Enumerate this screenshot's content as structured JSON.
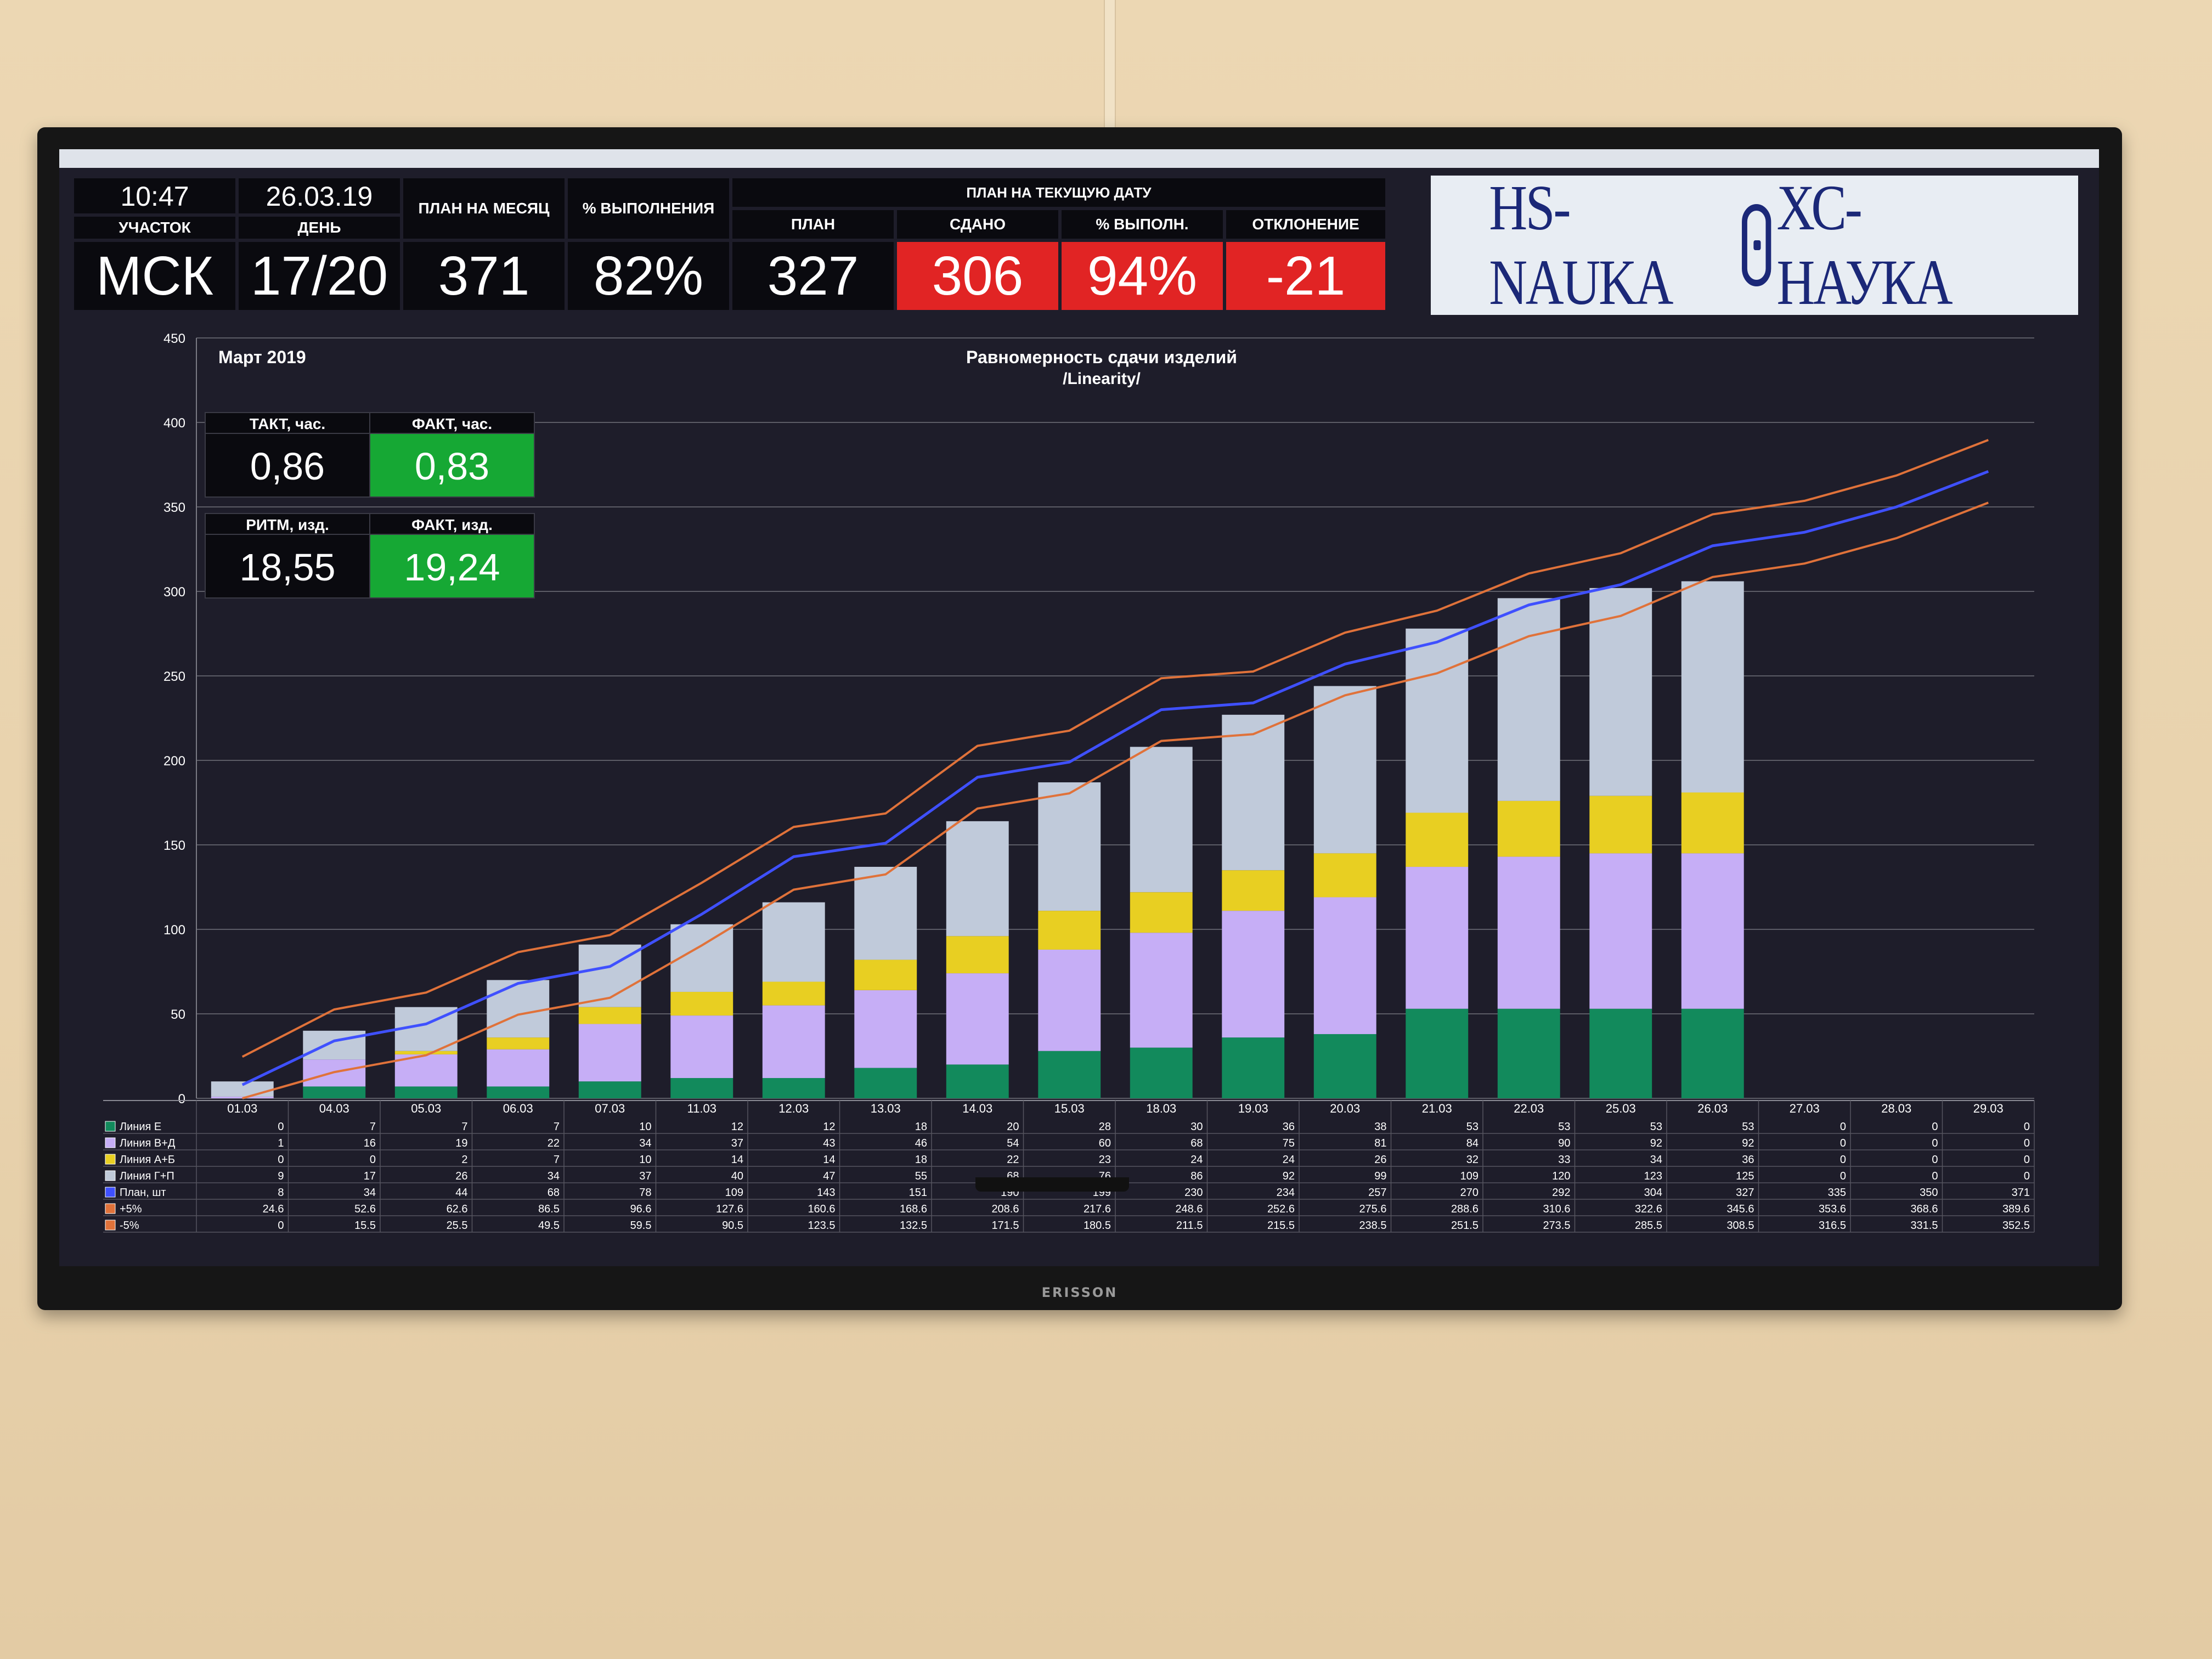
{
  "device": {
    "brand": "ERISSON"
  },
  "header": {
    "time": "10:47",
    "date": "26.03.19",
    "section_label": "УЧАСТОК",
    "section_value": "МСК",
    "day_label": "ДЕНЬ",
    "day_value": "17/20",
    "month_plan_label": "ПЛАН НА МЕСЯЦ",
    "month_plan_value": "371",
    "completion_label": "% ВЫПОЛНЕНИЯ",
    "completion_value": "82%",
    "current_plan_group_label": "ПЛАН НА ТЕКУЩУЮ ДАТУ",
    "plan_label": "ПЛАН",
    "plan_value": "327",
    "delivered_label": "СДАНО",
    "delivered_value": "306",
    "pct_label": "% ВЫПОЛН.",
    "pct_value": "94%",
    "deviation_label": "ОТКЛОНЕНИЕ",
    "deviation_value": "-21",
    "colors": {
      "bad": "#e12424",
      "good": "#16a834"
    }
  },
  "logo": {
    "latin": "HS-NAUKA",
    "cyrillic": "ХС-НАУКА"
  },
  "kpi": {
    "takt_label": "ТАКТ, час.",
    "takt_value": "0,86",
    "takt_fact_label": "ФАКТ, час.",
    "takt_fact_value": "0,83",
    "rhythm_label": "РИТМ, изд.",
    "rhythm_value": "18,55",
    "rhythm_fact_label": "ФАКТ, изд.",
    "rhythm_fact_value": "19,24"
  },
  "chart_data": {
    "type": "bar",
    "stacked": true,
    "month_label": "Март 2019",
    "title": "Равномерность сдачи изделий",
    "subtitle": "/Linearity/",
    "ylim": [
      0,
      450
    ],
    "yticks": [
      0,
      50,
      100,
      150,
      200,
      250,
      300,
      350,
      400,
      450
    ],
    "grid": true,
    "categories": [
      "01.03",
      "04.03",
      "05.03",
      "06.03",
      "07.03",
      "11.03",
      "12.03",
      "13.03",
      "14.03",
      "15.03",
      "18.03",
      "19.03",
      "20.03",
      "21.03",
      "22.03",
      "25.03",
      "26.03",
      "27.03",
      "28.03",
      "29.03"
    ],
    "series": [
      {
        "name": "Линия Е",
        "kind": "bar",
        "color": "#128a5c",
        "values": [
          0,
          7,
          7,
          7,
          10,
          12,
          12,
          18,
          20,
          28,
          30,
          36,
          38,
          53,
          53,
          53,
          53,
          0,
          0,
          0
        ]
      },
      {
        "name": "Линия В+Д",
        "kind": "bar",
        "color": "#c6aef6",
        "values": [
          1,
          16,
          19,
          22,
          34,
          37,
          43,
          46,
          54,
          60,
          68,
          75,
          81,
          84,
          90,
          92,
          92,
          0,
          0,
          0
        ]
      },
      {
        "name": "Линия А+Б",
        "kind": "bar",
        "color": "#e8cf22",
        "values": [
          0,
          0,
          2,
          7,
          10,
          14,
          14,
          18,
          22,
          23,
          24,
          24,
          26,
          32,
          33,
          34,
          36,
          0,
          0,
          0
        ]
      },
      {
        "name": "Линия Г+П",
        "kind": "bar",
        "color": "#c0cada",
        "values": [
          9,
          17,
          26,
          34,
          37,
          40,
          47,
          55,
          68,
          76,
          86,
          92,
          99,
          109,
          120,
          123,
          125,
          0,
          0,
          0
        ]
      },
      {
        "name": "План, шт",
        "kind": "line",
        "color": "#3f50ff",
        "values": [
          8,
          34,
          44,
          68,
          78,
          109,
          143,
          151,
          190,
          199,
          230,
          234,
          257,
          270,
          292,
          304,
          327,
          335,
          350,
          371
        ]
      },
      {
        "name": "+5%",
        "kind": "line",
        "color": "#e0723a",
        "values": [
          24.6,
          52.6,
          62.6,
          86.5,
          96.6,
          127.6,
          160.6,
          168.6,
          208.6,
          217.6,
          248.6,
          252.6,
          275.6,
          288.6,
          310.6,
          322.6,
          345.6,
          353.6,
          368.6,
          389.6
        ]
      },
      {
        "name": "-5%",
        "kind": "line",
        "color": "#e0723a",
        "values": [
          0,
          15.5,
          25.5,
          49.5,
          59.5,
          90.5,
          123.5,
          132.5,
          171.5,
          180.5,
          211.5,
          215.5,
          238.5,
          251.5,
          273.5,
          285.5,
          308.5,
          316.5,
          331.5,
          352.5
        ]
      }
    ],
    "table": {
      "rows": [
        {
          "label": "Линия Е",
          "cells": [
            "0",
            "7",
            "7",
            "7",
            "10",
            "12",
            "12",
            "18",
            "20",
            "28",
            "30",
            "36",
            "38",
            "53",
            "53",
            "53",
            "53",
            "0",
            "0",
            "0"
          ]
        },
        {
          "label": "Линия В+Д",
          "cells": [
            "1",
            "16",
            "19",
            "22",
            "34",
            "37",
            "43",
            "46",
            "54",
            "60",
            "68",
            "75",
            "81",
            "84",
            "90",
            "92",
            "92",
            "0",
            "0",
            "0"
          ]
        },
        {
          "label": "Линия А+Б",
          "cells": [
            "0",
            "0",
            "2",
            "7",
            "10",
            "14",
            "14",
            "18",
            "22",
            "23",
            "24",
            "24",
            "26",
            "32",
            "33",
            "34",
            "36",
            "0",
            "0",
            "0"
          ]
        },
        {
          "label": "Линия Г+П",
          "cells": [
            "9",
            "17",
            "26",
            "34",
            "37",
            "40",
            "47",
            "55",
            "68",
            "76",
            "86",
            "92",
            "99",
            "109",
            "120",
            "123",
            "125",
            "0",
            "0",
            "0"
          ]
        },
        {
          "label": "План, шт",
          "cells": [
            "8",
            "34",
            "44",
            "68",
            "78",
            "109",
            "143",
            "151",
            "190",
            "199",
            "230",
            "234",
            "257",
            "270",
            "292",
            "304",
            "327",
            "335",
            "350",
            "371"
          ]
        },
        {
          "label": "+5%",
          "cells": [
            "24.6",
            "52.6",
            "62.6",
            "86.5",
            "96.6",
            "127.6",
            "160.6",
            "168.6",
            "208.6",
            "217.6",
            "248.6",
            "252.6",
            "275.6",
            "288.6",
            "310.6",
            "322.6",
            "345.6",
            "353.6",
            "368.6",
            "389.6"
          ]
        },
        {
          "label": "-5%",
          "cells": [
            "0",
            "15.5",
            "25.5",
            "49.5",
            "59.5",
            "90.5",
            "123.5",
            "132.5",
            "171.5",
            "180.5",
            "211.5",
            "215.5",
            "238.5",
            "251.5",
            "273.5",
            "285.5",
            "308.5",
            "316.5",
            "331.5",
            "352.5"
          ]
        }
      ]
    }
  }
}
